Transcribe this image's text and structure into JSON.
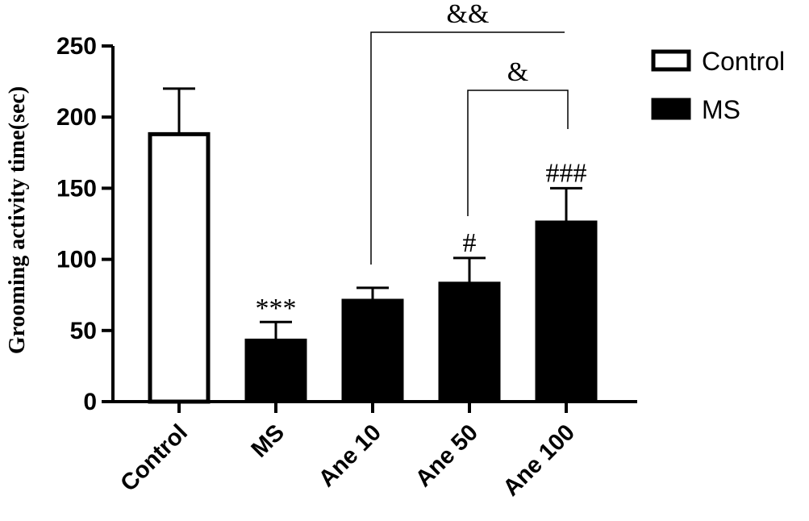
{
  "chart_data": {
    "type": "bar",
    "title": "",
    "xlabel": "",
    "ylabel": "Grooming activity time(sec)",
    "ylim": [
      0,
      250
    ],
    "yticks": [
      0,
      50,
      100,
      150,
      200,
      250
    ],
    "categories": [
      "Control",
      "MS",
      "Ane 10",
      "Ane 50",
      "Ane 100"
    ],
    "values": [
      188,
      44,
      72,
      84,
      127
    ],
    "errors": [
      32,
      12,
      8,
      17,
      23
    ],
    "bar_groups": [
      "Control",
      "MS",
      "MS",
      "MS",
      "MS"
    ],
    "annotations": [
      "",
      "***",
      "",
      "#",
      "###"
    ],
    "brackets": [
      {
        "from": "Ane 10",
        "to": "Ane 100",
        "label": "&&"
      },
      {
        "from": "Ane 50",
        "to": "Ane 100",
        "label": "&"
      }
    ],
    "legend": {
      "position": "top-right",
      "entries": [
        {
          "label": "Control",
          "fill": "#ffffff"
        },
        {
          "label": "MS",
          "fill": "#000000"
        }
      ]
    },
    "colors": {
      "bar_outline": "#000000",
      "ms_fill": "#000000",
      "control_fill": "#ffffff"
    }
  }
}
